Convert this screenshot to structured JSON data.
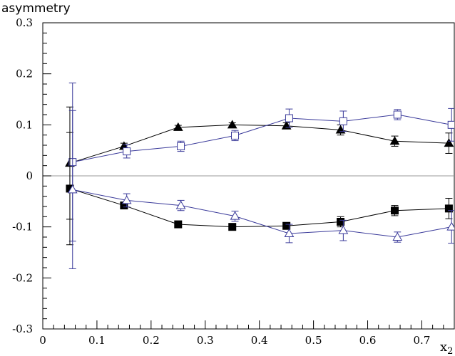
{
  "chart_data": {
    "type": "scatter",
    "title": "",
    "ylabel": "asymmetry",
    "xlabel": "x",
    "xlabel_subscript": "2",
    "xlim": [
      0,
      0.76
    ],
    "ylim": [
      -0.3,
      0.3
    ],
    "xticks": [
      0,
      0.1,
      0.2,
      0.3,
      0.4,
      0.5,
      0.6,
      0.7
    ],
    "yticks": [
      -0.3,
      -0.2,
      -0.1,
      0,
      0.1,
      0.2,
      0.3
    ],
    "grid": false,
    "zero_line": true,
    "series": [
      {
        "marker": "filled-triangle",
        "color": "#000000",
        "x": [
          0.05,
          0.15,
          0.25,
          0.35,
          0.45,
          0.55,
          0.65,
          0.75
        ],
        "y": [
          0.025,
          0.058,
          0.095,
          0.1,
          0.098,
          0.09,
          0.068,
          0.064
        ],
        "err": [
          0.11,
          0.006,
          0.004,
          0.004,
          0.006,
          0.01,
          0.01,
          0.02
        ]
      },
      {
        "marker": "open-square",
        "color": "#3a3a9a",
        "x": [
          0.055,
          0.155,
          0.255,
          0.355,
          0.455,
          0.555,
          0.655,
          0.755
        ],
        "y": [
          0.027,
          0.048,
          0.058,
          0.079,
          0.113,
          0.107,
          0.12,
          0.1
        ],
        "err": [
          0.155,
          0.013,
          0.01,
          0.01,
          0.018,
          0.02,
          0.01,
          0.032
        ]
      },
      {
        "marker": "filled-square",
        "color": "#000000",
        "x": [
          0.05,
          0.15,
          0.25,
          0.35,
          0.45,
          0.55,
          0.65,
          0.75
        ],
        "y": [
          -0.025,
          -0.058,
          -0.095,
          -0.1,
          -0.098,
          -0.09,
          -0.068,
          -0.064
        ],
        "err": [
          0.11,
          0.006,
          0.004,
          0.004,
          0.006,
          0.01,
          0.01,
          0.02
        ]
      },
      {
        "marker": "open-triangle",
        "color": "#3a3a9a",
        "x": [
          0.055,
          0.155,
          0.255,
          0.355,
          0.455,
          0.555,
          0.655,
          0.755
        ],
        "y": [
          -0.027,
          -0.048,
          -0.058,
          -0.079,
          -0.113,
          -0.107,
          -0.12,
          -0.1
        ],
        "err": [
          0.155,
          0.013,
          0.01,
          0.01,
          0.018,
          0.02,
          0.01,
          0.032
        ]
      }
    ]
  }
}
